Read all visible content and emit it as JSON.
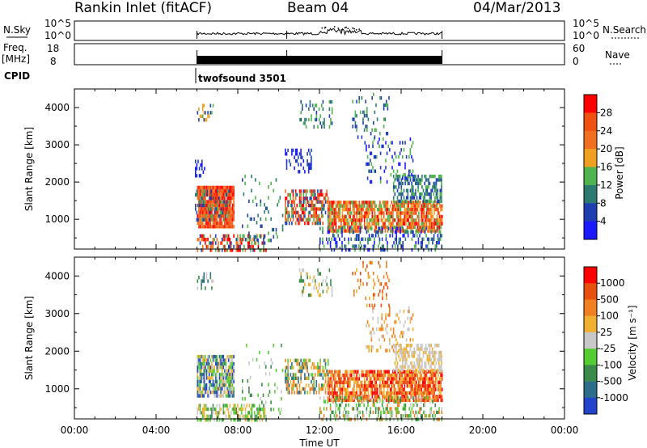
{
  "header": {
    "station": "Rankin Inlet (fitACF)",
    "beam": "Beam 04",
    "date": "04/Mar/2013"
  },
  "params": {
    "nsky_label": "N.Sky",
    "nsky_ticks": [
      "10^5",
      "10^0"
    ],
    "nsearch_label": "N.Search",
    "freq_label_1": "Freq.",
    "freq_label_2": "[MHz]",
    "freq_ticks": [
      "18",
      "8"
    ],
    "nave_label": "Nave",
    "nave_ticks": [
      "60",
      "0"
    ],
    "cpid_label": "CPID",
    "cpid_value": "twofsound 3501"
  },
  "time_axis": {
    "label": "Time UT",
    "ticks": [
      "00:00",
      "04:00",
      "08:00",
      "12:00",
      "16:00",
      "20:00",
      "00:00"
    ],
    "data_range_hours": [
      6.0,
      18.0
    ],
    "breaks_hours": [
      6.0,
      10.4,
      18.0
    ]
  },
  "colors": {
    "power": [
      "#1a1aff",
      "#1f3fb0",
      "#2c7a70",
      "#4fb34f",
      "#f0a020",
      "#f07020",
      "#f05010",
      "#ff0000"
    ],
    "velocity": [
      "#2244cc",
      "#2c6e8a",
      "#3a8a4a",
      "#55cc33",
      "#c8c8c8",
      "#f0b030",
      "#f08020",
      "#e85010",
      "#ff0000"
    ]
  },
  "chart_data": [
    {
      "type": "heatmap",
      "xlabel": "",
      "ylabel": "Slant Range [km]",
      "ylim": [
        200,
        4500
      ],
      "yticks": [
        1000,
        2000,
        3000,
        4000
      ],
      "colorbar_label": "Power [dB]",
      "colorbar_ticks": [
        "28",
        "24",
        "20",
        "16",
        "12",
        "8",
        "4"
      ],
      "blobs": [
        {
          "t0": 6.0,
          "t1": 7.8,
          "r0": 800,
          "r1": 1900,
          "levels": [
            7,
            6,
            5
          ],
          "fill": 0.95
        },
        {
          "t0": 5.9,
          "t1": 7.6,
          "r0": 1000,
          "r1": 1800,
          "levels": [
            2,
            1,
            3
          ],
          "fill": 0.35
        },
        {
          "t0": 6.0,
          "t1": 9.4,
          "r0": 200,
          "r1": 600,
          "levels": [
            7,
            5,
            3,
            1
          ],
          "fill": 0.55
        },
        {
          "t0": 6.0,
          "t1": 6.8,
          "r0": 3700,
          "r1": 4100,
          "levels": [
            3,
            4,
            1
          ],
          "fill": 0.4
        },
        {
          "t0": 5.9,
          "t1": 6.4,
          "r0": 2200,
          "r1": 2600,
          "levels": [
            1,
            0
          ],
          "fill": 0.4
        },
        {
          "t0": 10.3,
          "t1": 12.4,
          "r0": 900,
          "r1": 1800,
          "levels": [
            7,
            6,
            5,
            3,
            1
          ],
          "fill": 0.6
        },
        {
          "t0": 10.3,
          "t1": 11.6,
          "r0": 2300,
          "r1": 2900,
          "levels": [
            1,
            0
          ],
          "fill": 0.35
        },
        {
          "t0": 11.0,
          "t1": 12.6,
          "r0": 3500,
          "r1": 4200,
          "levels": [
            1,
            2,
            3
          ],
          "fill": 0.25
        },
        {
          "t0": 12.4,
          "t1": 18.0,
          "r0": 700,
          "r1": 1500,
          "levels": [
            5,
            6,
            4,
            3,
            7
          ],
          "fill": 0.8
        },
        {
          "t0": 12.0,
          "t1": 18.0,
          "r0": 200,
          "r1": 800,
          "levels": [
            1,
            2,
            0,
            3
          ],
          "fill": 0.35
        },
        {
          "t0": 15.6,
          "t1": 18.0,
          "r0": 1500,
          "r1": 2200,
          "levels": [
            3,
            2,
            1
          ],
          "fill": 0.6
        },
        {
          "t0": 14.2,
          "t1": 16.6,
          "r0": 2000,
          "r1": 3200,
          "levels": [
            1,
            3,
            0
          ],
          "fill": 0.18
        },
        {
          "t0": 13.6,
          "t1": 15.4,
          "r0": 3200,
          "r1": 4400,
          "levels": [
            1,
            3,
            2
          ],
          "fill": 0.18
        },
        {
          "t0": 8.2,
          "t1": 10.2,
          "r0": 400,
          "r1": 2200,
          "levels": [
            1,
            3,
            2
          ],
          "fill": 0.08
        }
      ]
    },
    {
      "type": "heatmap",
      "xlabel": "Time UT",
      "ylabel": "Slant Range [km]",
      "ylim": [
        200,
        4500
      ],
      "yticks": [
        1000,
        2000,
        3000,
        4000
      ],
      "colorbar_label": "Velocity [m s⁻¹]",
      "colorbar_ticks": [
        "1000",
        "500",
        "100",
        "25",
        "-25",
        "-100",
        "-500",
        "-1000"
      ],
      "blobs": [
        {
          "t0": 6.0,
          "t1": 7.8,
          "r0": 800,
          "r1": 1900,
          "levels": [
            5,
            4,
            1,
            0,
            3
          ],
          "fill": 0.85
        },
        {
          "t0": 6.0,
          "t1": 9.4,
          "r0": 200,
          "r1": 600,
          "levels": [
            3,
            2,
            4,
            5
          ],
          "fill": 0.5
        },
        {
          "t0": 6.0,
          "t1": 6.8,
          "r0": 3700,
          "r1": 4100,
          "levels": [
            2,
            4,
            1
          ],
          "fill": 0.4
        },
        {
          "t0": 10.3,
          "t1": 12.4,
          "r0": 900,
          "r1": 1800,
          "levels": [
            6,
            5,
            3,
            1
          ],
          "fill": 0.55
        },
        {
          "t0": 11.0,
          "t1": 12.6,
          "r0": 3500,
          "r1": 4200,
          "levels": [
            2,
            4,
            5
          ],
          "fill": 0.25
        },
        {
          "t0": 12.4,
          "t1": 18.0,
          "r0": 700,
          "r1": 1500,
          "levels": [
            6,
            7,
            5,
            8
          ],
          "fill": 0.8
        },
        {
          "t0": 12.0,
          "t1": 18.0,
          "r0": 200,
          "r1": 800,
          "levels": [
            3,
            4,
            2,
            6
          ],
          "fill": 0.35
        },
        {
          "t0": 15.6,
          "t1": 18.0,
          "r0": 1500,
          "r1": 2200,
          "levels": [
            4,
            4,
            5
          ],
          "fill": 0.6
        },
        {
          "t0": 14.2,
          "t1": 16.6,
          "r0": 2000,
          "r1": 3200,
          "levels": [
            5,
            4,
            6
          ],
          "fill": 0.18
        },
        {
          "t0": 13.6,
          "t1": 15.4,
          "r0": 3200,
          "r1": 4400,
          "levels": [
            6,
            7,
            5
          ],
          "fill": 0.18
        },
        {
          "t0": 8.2,
          "t1": 10.2,
          "r0": 400,
          "r1": 2200,
          "levels": [
            3,
            2,
            4
          ],
          "fill": 0.08
        }
      ]
    }
  ]
}
